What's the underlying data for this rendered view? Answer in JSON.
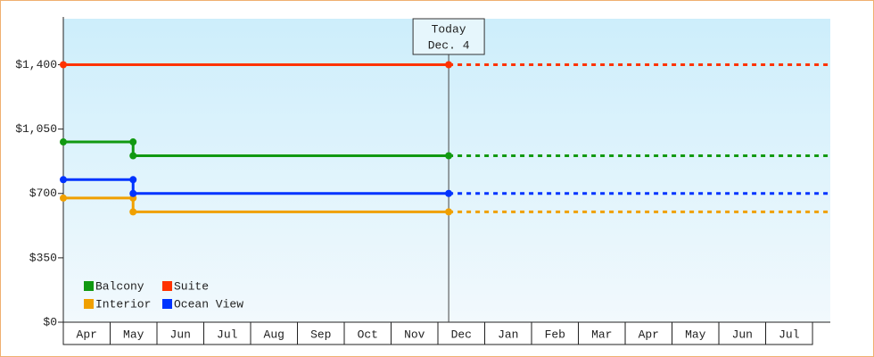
{
  "chart_data": {
    "type": "line",
    "categories": [
      "Apr",
      "May",
      "Jun",
      "Jul",
      "Aug",
      "Sep",
      "Oct",
      "Nov",
      "Dec",
      "Jan",
      "Feb",
      "Mar",
      "Apr",
      "May",
      "Jun",
      "Jul"
    ],
    "xlim": [
      0,
      16.38
    ],
    "ylim": [
      0,
      1650
    ],
    "yticks": [
      {
        "value": 0,
        "label": "$0"
      },
      {
        "value": 350,
        "label": "$350"
      },
      {
        "value": 700,
        "label": "$700"
      },
      {
        "value": 1050,
        "label": "$1,050"
      },
      {
        "value": 1400,
        "label": "$1,400"
      }
    ],
    "annotation": {
      "x": 8.23,
      "lines": [
        "Today",
        "Dec. 4"
      ]
    },
    "series": [
      {
        "name": "Balcony",
        "color": "#119911",
        "x": [
          0,
          1.49,
          1.49,
          8.23
        ],
        "values": [
          980,
          980,
          905,
          905
        ]
      },
      {
        "name": "Suite",
        "color": "#ff3300",
        "x": [
          0,
          8.23
        ],
        "values": [
          1400,
          1400
        ]
      },
      {
        "name": "Interior",
        "color": "#f0a000",
        "x": [
          0,
          1.49,
          1.49,
          8.23
        ],
        "values": [
          675,
          675,
          600,
          600
        ]
      },
      {
        "name": "Ocean View",
        "color": "#0033ff",
        "x": [
          0,
          1.49,
          1.49,
          8.23
        ],
        "values": [
          775,
          775,
          700,
          700
        ]
      }
    ]
  }
}
